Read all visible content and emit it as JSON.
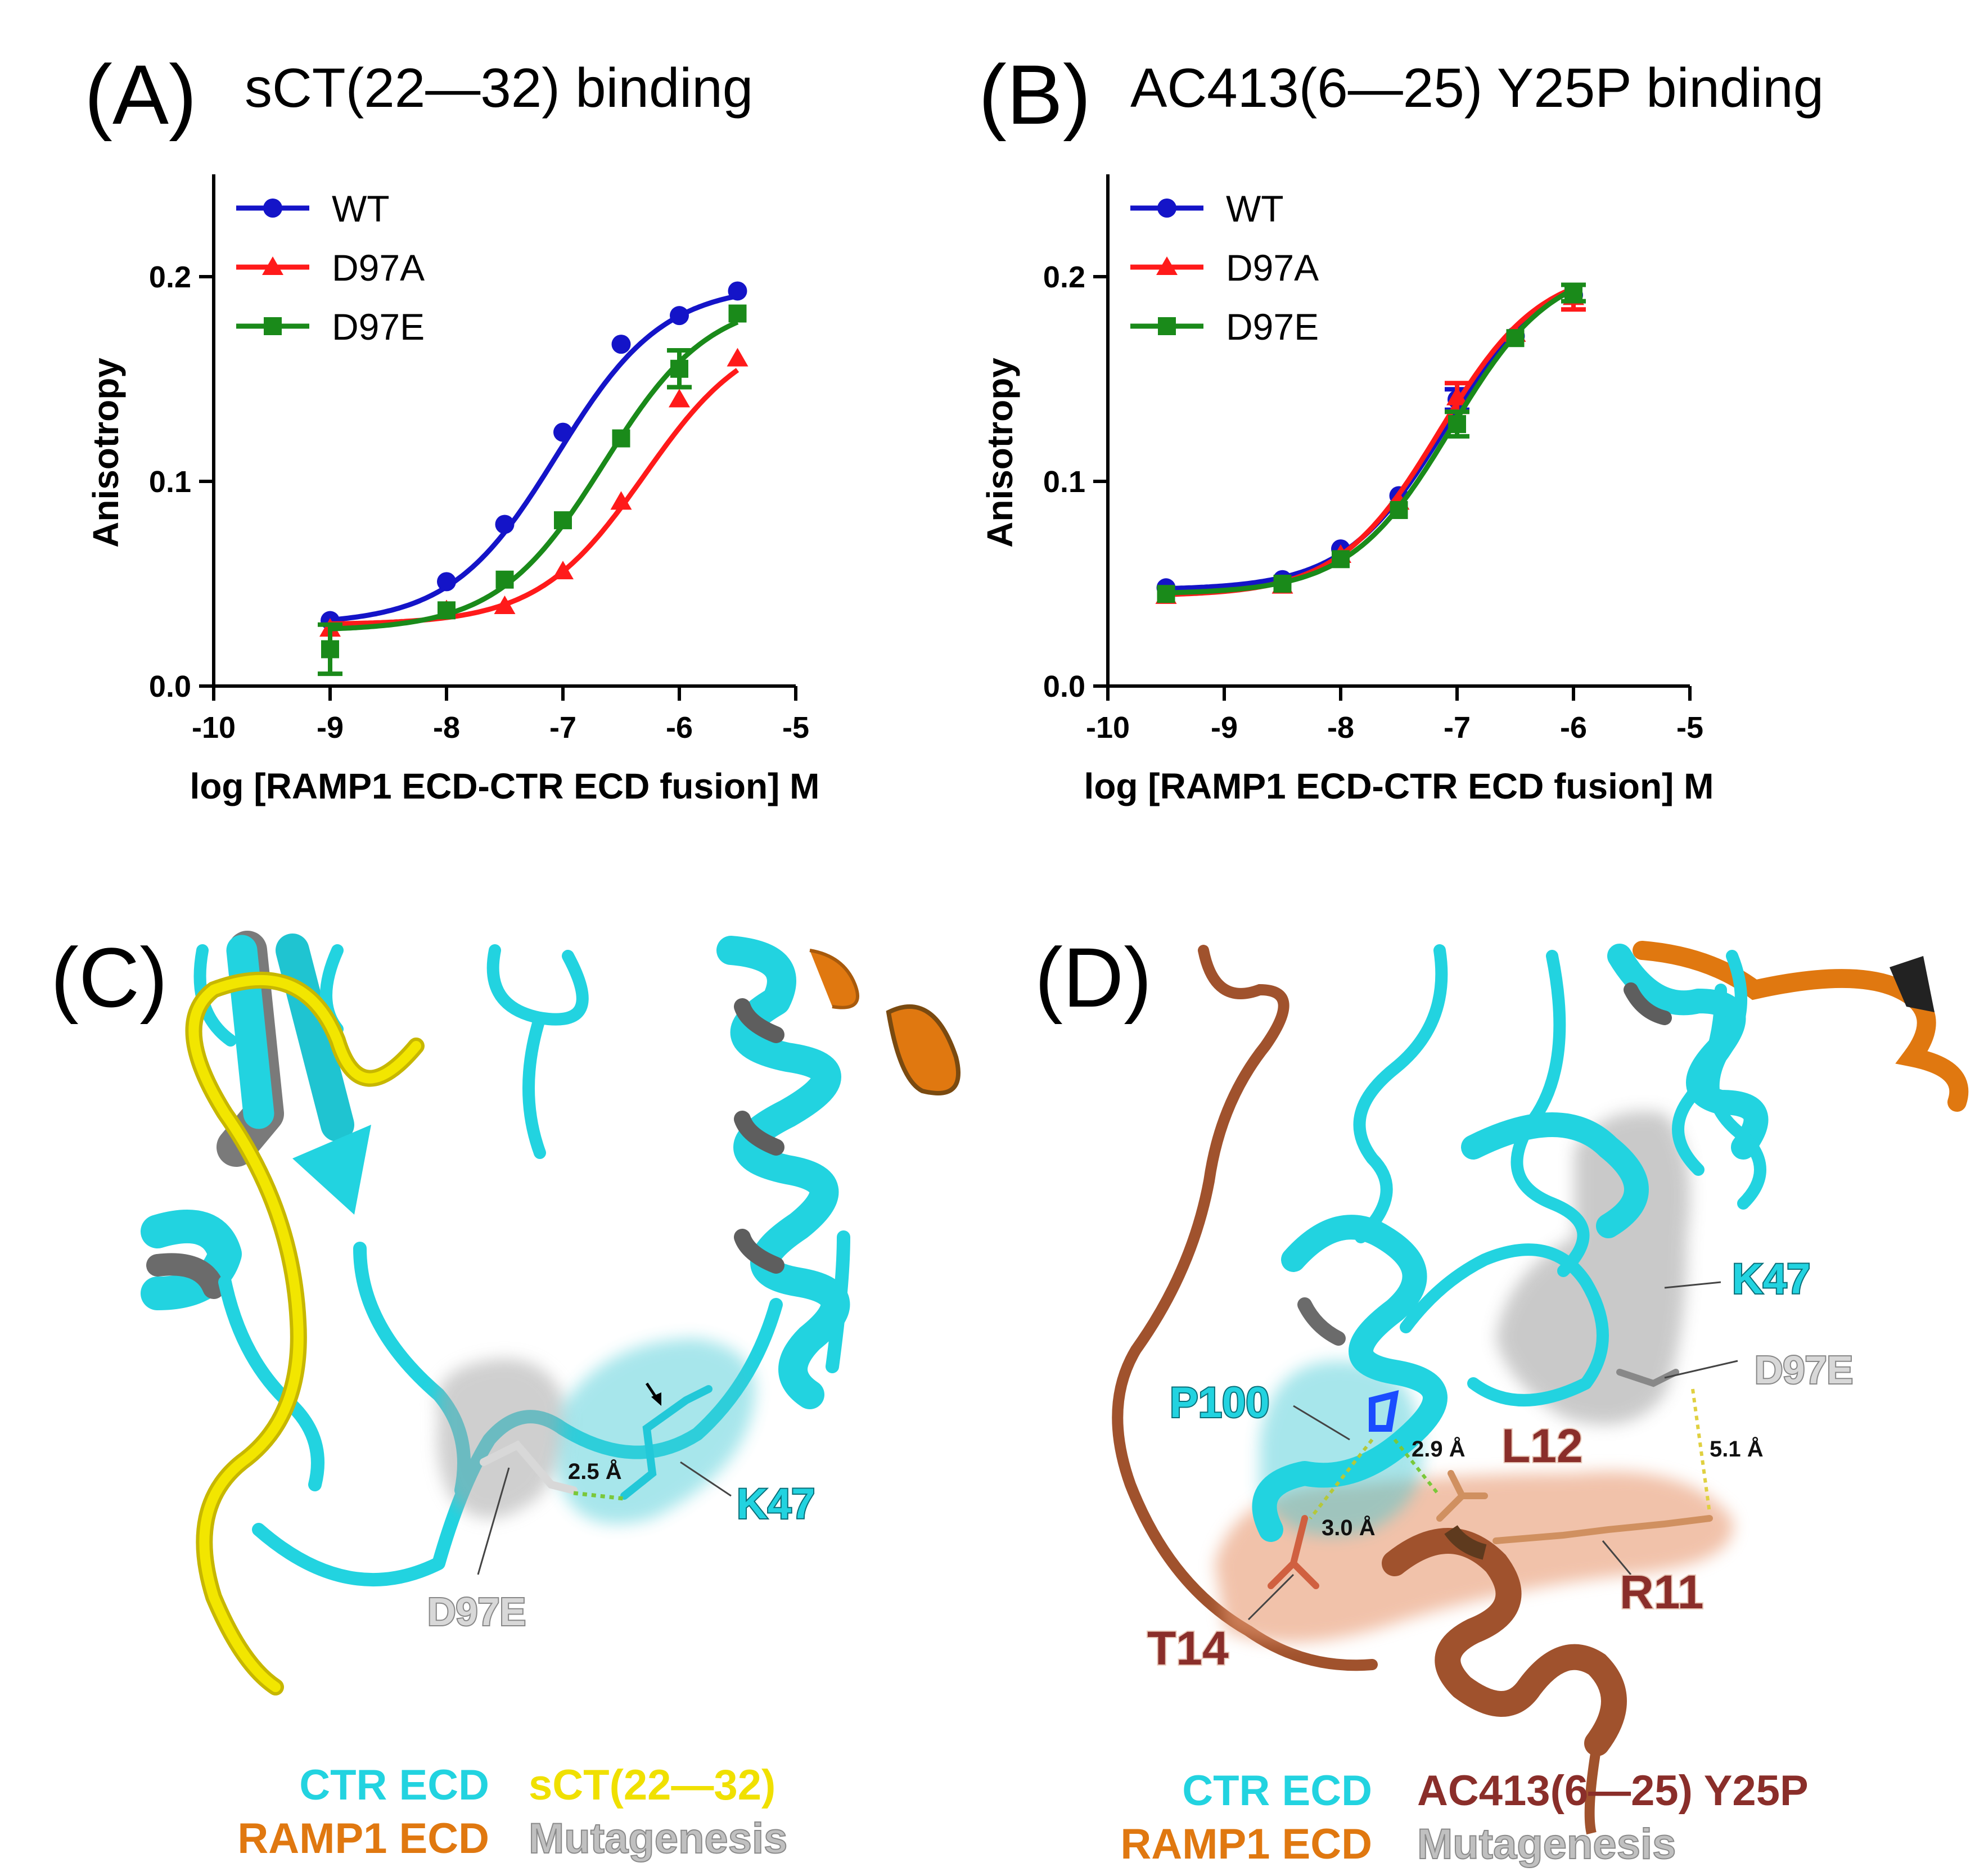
{
  "panels": {
    "A": {
      "letter": "(A)",
      "title": "sCT(22—32) binding"
    },
    "B": {
      "letter": "(B)",
      "title": "AC413(6—25) Y25P binding"
    },
    "C": {
      "letter": "(C)",
      "labels": {
        "k47": "K47",
        "d97e": "D97E",
        "dist": "2.5 Å"
      },
      "legend": {
        "ctr": "CTR ECD",
        "ligand": "sCT(22—32)",
        "ramp": "RAMP1 ECD",
        "mut": "Mutagenesis"
      }
    },
    "D": {
      "letter": "(D)",
      "labels": {
        "k47": "K47",
        "d97e": "D97E",
        "p100": "P100",
        "l12": "L12",
        "r11": "R11",
        "t14": "T14",
        "d1": "2.9 Å",
        "d2": "3.0 Å",
        "d3": "5.1 Å"
      },
      "legend": {
        "ctr": "CTR ECD",
        "ligand": "AC413(6—25) Y25P",
        "ramp": "RAMP1 ECD",
        "mut": "Mutagenesis"
      }
    }
  },
  "colors": {
    "wt": "#1414c8",
    "d97a": "#ff1a1a",
    "d97e": "#1a8a1a",
    "ctr": "#22d3e0",
    "sct": "#f0e000",
    "ramp": "#e07810",
    "mut": "#b4b4b4",
    "ac413": "#8a2e2a",
    "ac413_ribbon": "#a0522d"
  },
  "chart_data": [
    {
      "type": "line",
      "panel": "A",
      "title": "sCT(22—32) binding",
      "xlabel": "log [RAMP1 ECD-CTR ECD fusion] M",
      "ylabel": "Anisotropy",
      "xlim": [
        -10,
        -5
      ],
      "ylim": [
        0.0,
        0.25
      ],
      "xticks": [
        -10,
        -9,
        -8,
        -7,
        -6,
        -5
      ],
      "xtick_labels": [
        "-10",
        "-9",
        "-8",
        "-7",
        "-6",
        "-5"
      ],
      "yticks": [
        0.0,
        0.1,
        0.2
      ],
      "ytick_labels": [
        "0.0",
        "0.1",
        "0.2"
      ],
      "legend_position": "top-left",
      "series": [
        {
          "name": "WT",
          "marker": "circle",
          "x": [
            -9,
            -8,
            -7.5,
            -7,
            -6.5,
            -6,
            -5.5
          ],
          "y": [
            0.032,
            0.051,
            0.079,
            0.124,
            0.167,
            0.181,
            0.193
          ],
          "err": [
            0.002,
            0.002,
            0.002,
            0.002,
            0.002,
            0.002,
            0.002
          ],
          "fit": {
            "bottom": 0.03,
            "top": 0.196,
            "logec50": -7.05,
            "hill": 0.95
          }
        },
        {
          "name": "D97A",
          "marker": "triangle",
          "x": [
            -9,
            -8,
            -7.5,
            -7,
            -6.5,
            -6,
            -5.5
          ],
          "y": [
            0.028,
            0.037,
            0.039,
            0.056,
            0.09,
            0.14,
            0.16
          ],
          "err": [
            0.002,
            0.002,
            0.002,
            0.002,
            0.002,
            0.002,
            0.002
          ],
          "fit": {
            "bottom": 0.03,
            "top": 0.176,
            "logec50": -6.3,
            "hill": 0.95
          }
        },
        {
          "name": "D97E",
          "marker": "square",
          "x": [
            -9,
            -8,
            -7.5,
            -7,
            -6.5,
            -6,
            -5.5
          ],
          "y": [
            0.018,
            0.037,
            0.052,
            0.081,
            0.121,
            0.155,
            0.182
          ],
          "err": [
            0.012,
            0.002,
            0.003,
            0.003,
            0.003,
            0.009,
            0.003
          ],
          "fit": {
            "bottom": 0.027,
            "top": 0.19,
            "logec50": -6.65,
            "hill": 0.95
          }
        }
      ]
    },
    {
      "type": "line",
      "panel": "B",
      "title": "AC413(6—25) Y25P binding",
      "xlabel": "log [RAMP1 ECD-CTR ECD fusion] M",
      "ylabel": "Anisotropy",
      "xlim": [
        -10,
        -5
      ],
      "ylim": [
        0.0,
        0.25
      ],
      "xticks": [
        -10,
        -9,
        -8,
        -7,
        -6,
        -5
      ],
      "xtick_labels": [
        "-10",
        "-9",
        "-8",
        "-7",
        "-6",
        "-5"
      ],
      "yticks": [
        0.0,
        0.1,
        0.2
      ],
      "ytick_labels": [
        "0.0",
        "0.1",
        "0.2"
      ],
      "legend_position": "top-left",
      "series": [
        {
          "name": "WT",
          "marker": "circle",
          "x": [
            -9.5,
            -8.5,
            -8,
            -7.5,
            -7,
            -6.5,
            -6
          ],
          "y": [
            0.048,
            0.052,
            0.067,
            0.093,
            0.14,
            0.171,
            0.191
          ],
          "err": [
            0.002,
            0.002,
            0.002,
            0.002,
            0.005,
            0.003,
            0.003
          ],
          "fit": {
            "bottom": 0.047,
            "top": 0.205,
            "logec50": -7.1,
            "hill": 1.0
          }
        },
        {
          "name": "D97A",
          "marker": "triangle",
          "x": [
            -9.5,
            -8.5,
            -8,
            -7.5,
            -7,
            -6.5,
            -6
          ],
          "y": [
            0.044,
            0.049,
            0.064,
            0.09,
            0.141,
            0.172,
            0.19
          ],
          "err": [
            0.003,
            0.002,
            0.002,
            0.002,
            0.007,
            0.003,
            0.006
          ],
          "fit": {
            "bottom": 0.044,
            "top": 0.205,
            "logec50": -7.15,
            "hill": 1.0
          }
        },
        {
          "name": "D97E",
          "marker": "square",
          "x": [
            -9.5,
            -8.5,
            -8,
            -7.5,
            -7,
            -6.5,
            -6
          ],
          "y": [
            0.045,
            0.05,
            0.062,
            0.086,
            0.128,
            0.17,
            0.192
          ],
          "err": [
            0.002,
            0.002,
            0.002,
            0.002,
            0.006,
            0.003,
            0.004
          ],
          "fit": {
            "bottom": 0.045,
            "top": 0.207,
            "logec50": -7.05,
            "hill": 1.0
          }
        }
      ]
    }
  ]
}
